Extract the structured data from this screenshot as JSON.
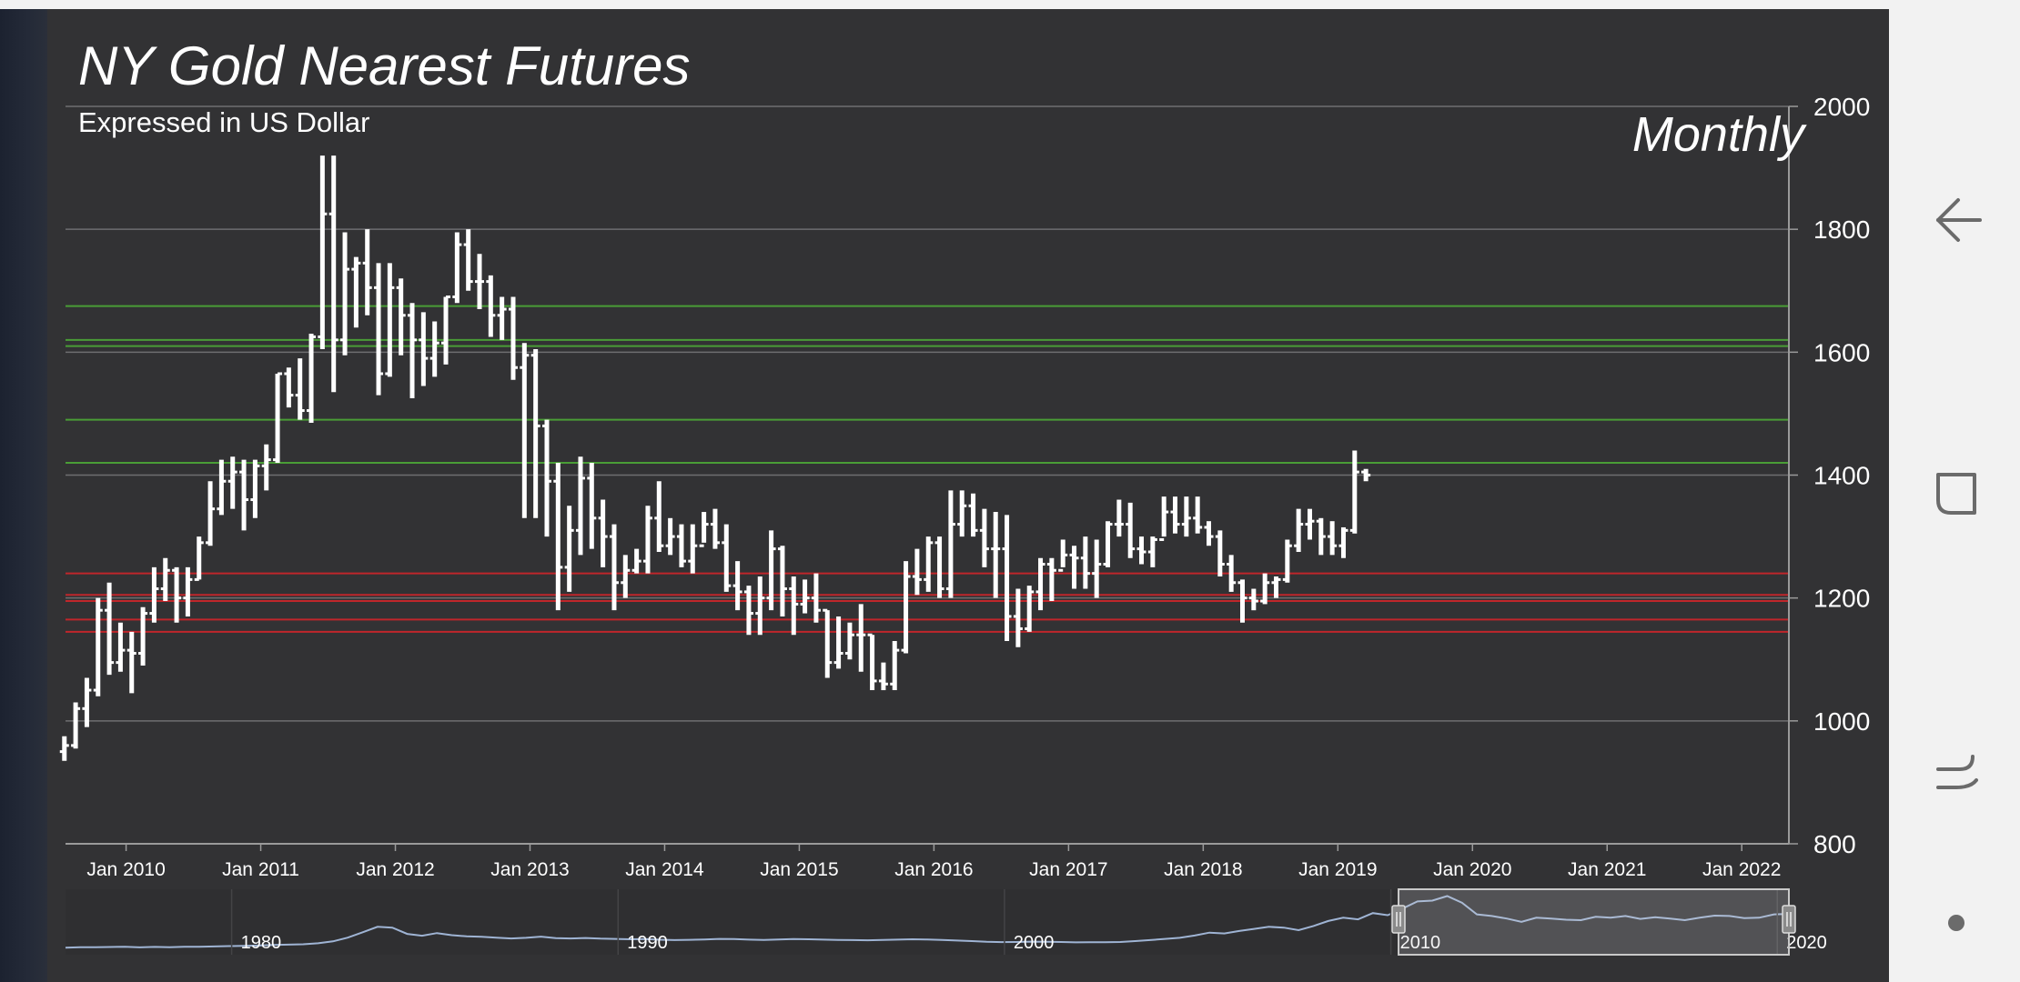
{
  "chart_data": {
    "type": "ohlc",
    "title": "NY Gold Nearest Futures",
    "subtitle": "Expressed in US Dollar",
    "period_label": "Monthly",
    "ylim": [
      800,
      2000
    ],
    "y_ticks": [
      "800",
      "1000",
      "1200",
      "1400",
      "1600",
      "1800",
      "2000"
    ],
    "x_ticks": [
      "Jan 2010",
      "Jan 2011",
      "Jan 2012",
      "Jan 2013",
      "Jan 2014",
      "Jan 2015",
      "Jan 2016",
      "Jan 2017",
      "Jan 2018",
      "Jan 2019",
      "Jan 2020",
      "Jan 2021",
      "Jan 2022"
    ],
    "x_range_years": [
      2009.55,
      2022.35
    ],
    "start": "2009-07",
    "green_levels": [
      1675,
      1620,
      1610,
      1490,
      1420
    ],
    "red_levels": [
      1240,
      1205,
      1195,
      1165,
      1145
    ],
    "grid": true,
    "colors": {
      "background": "#323234",
      "bars": "#ffffff",
      "grid": "#6e6e70",
      "green_lines": "#4a9d36",
      "red_lines": "#c0262b",
      "navigator_line": "#9fb4d4"
    },
    "bars": [
      [
        950,
        975,
        935,
        960
      ],
      [
        960,
        1030,
        955,
        1020
      ],
      [
        1020,
        1070,
        990,
        1050
      ],
      [
        1050,
        1200,
        1040,
        1180
      ],
      [
        1180,
        1225,
        1075,
        1095
      ],
      [
        1095,
        1160,
        1080,
        1115
      ],
      [
        1115,
        1145,
        1045,
        1110
      ],
      [
        1110,
        1185,
        1090,
        1175
      ],
      [
        1175,
        1250,
        1160,
        1215
      ],
      [
        1215,
        1265,
        1195,
        1245
      ],
      [
        1245,
        1250,
        1160,
        1200
      ],
      [
        1200,
        1250,
        1170,
        1230
      ],
      [
        1230,
        1300,
        1230,
        1290
      ],
      [
        1290,
        1390,
        1285,
        1345
      ],
      [
        1345,
        1425,
        1335,
        1390
      ],
      [
        1390,
        1430,
        1345,
        1405
      ],
      [
        1405,
        1425,
        1310,
        1360
      ],
      [
        1360,
        1425,
        1330,
        1415
      ],
      [
        1415,
        1450,
        1375,
        1425
      ],
      [
        1425,
        1565,
        1420,
        1565
      ],
      [
        1565,
        1575,
        1510,
        1530
      ],
      [
        1530,
        1590,
        1490,
        1505
      ],
      [
        1505,
        1630,
        1485,
        1625
      ],
      [
        1625,
        1920,
        1605,
        1825
      ],
      [
        1825,
        1920,
        1535,
        1620
      ],
      [
        1620,
        1795,
        1595,
        1735
      ],
      [
        1735,
        1755,
        1640,
        1745
      ],
      [
        1745,
        1800,
        1660,
        1705
      ],
      [
        1705,
        1745,
        1530,
        1565
      ],
      [
        1565,
        1745,
        1560,
        1705
      ],
      [
        1705,
        1720,
        1595,
        1660
      ],
      [
        1660,
        1680,
        1525,
        1620
      ],
      [
        1620,
        1665,
        1545,
        1590
      ],
      [
        1590,
        1650,
        1560,
        1615
      ],
      [
        1615,
        1690,
        1580,
        1690
      ],
      [
        1690,
        1795,
        1680,
        1775
      ],
      [
        1775,
        1800,
        1700,
        1715
      ],
      [
        1715,
        1760,
        1670,
        1715
      ],
      [
        1715,
        1725,
        1625,
        1660
      ],
      [
        1660,
        1690,
        1620,
        1670
      ],
      [
        1670,
        1690,
        1555,
        1575
      ],
      [
        1575,
        1615,
        1330,
        1595
      ],
      [
        1595,
        1605,
        1330,
        1480
      ],
      [
        1480,
        1490,
        1300,
        1390
      ],
      [
        1390,
        1420,
        1180,
        1250
      ],
      [
        1250,
        1350,
        1210,
        1310
      ],
      [
        1310,
        1430,
        1270,
        1395
      ],
      [
        1395,
        1420,
        1280,
        1330
      ],
      [
        1330,
        1360,
        1250,
        1300
      ],
      [
        1300,
        1320,
        1180,
        1225
      ],
      [
        1225,
        1270,
        1200,
        1245
      ],
      [
        1245,
        1280,
        1240,
        1260
      ],
      [
        1260,
        1350,
        1240,
        1330
      ],
      [
        1330,
        1390,
        1275,
        1285
      ],
      [
        1285,
        1330,
        1270,
        1300
      ],
      [
        1300,
        1320,
        1250,
        1260
      ],
      [
        1260,
        1320,
        1240,
        1285
      ],
      [
        1285,
        1340,
        1290,
        1320
      ],
      [
        1320,
        1345,
        1280,
        1290
      ],
      [
        1290,
        1320,
        1210,
        1220
      ],
      [
        1220,
        1260,
        1180,
        1210
      ],
      [
        1210,
        1220,
        1140,
        1175
      ],
      [
        1175,
        1235,
        1140,
        1200
      ],
      [
        1200,
        1310,
        1180,
        1280
      ],
      [
        1280,
        1285,
        1170,
        1215
      ],
      [
        1215,
        1235,
        1140,
        1190
      ],
      [
        1190,
        1230,
        1175,
        1200
      ],
      [
        1200,
        1240,
        1160,
        1180
      ],
      [
        1180,
        1180,
        1070,
        1095
      ],
      [
        1095,
        1170,
        1085,
        1110
      ],
      [
        1110,
        1160,
        1100,
        1140
      ],
      [
        1140,
        1190,
        1080,
        1140
      ],
      [
        1140,
        1140,
        1050,
        1065
      ],
      [
        1065,
        1095,
        1050,
        1060
      ],
      [
        1060,
        1130,
        1050,
        1115
      ],
      [
        1115,
        1260,
        1110,
        1235
      ],
      [
        1235,
        1280,
        1205,
        1230
      ],
      [
        1230,
        1300,
        1210,
        1290
      ],
      [
        1290,
        1300,
        1200,
        1215
      ],
      [
        1215,
        1375,
        1200,
        1320
      ],
      [
        1320,
        1375,
        1300,
        1350
      ],
      [
        1350,
        1370,
        1300,
        1310
      ],
      [
        1310,
        1345,
        1250,
        1280
      ],
      [
        1280,
        1340,
        1200,
        1280
      ],
      [
        1280,
        1335,
        1130,
        1170
      ],
      [
        1170,
        1215,
        1120,
        1150
      ],
      [
        1150,
        1220,
        1145,
        1210
      ],
      [
        1210,
        1265,
        1180,
        1255
      ],
      [
        1255,
        1265,
        1195,
        1245
      ],
      [
        1245,
        1295,
        1250,
        1270
      ],
      [
        1270,
        1285,
        1215,
        1265
      ],
      [
        1265,
        1300,
        1215,
        1240
      ],
      [
        1240,
        1295,
        1200,
        1255
      ],
      [
        1255,
        1325,
        1250,
        1320
      ],
      [
        1320,
        1360,
        1300,
        1320
      ],
      [
        1320,
        1355,
        1265,
        1280
      ],
      [
        1280,
        1300,
        1255,
        1275
      ],
      [
        1275,
        1300,
        1250,
        1295
      ],
      [
        1295,
        1365,
        1300,
        1340
      ],
      [
        1340,
        1365,
        1305,
        1320
      ],
      [
        1320,
        1365,
        1300,
        1330
      ],
      [
        1330,
        1365,
        1305,
        1315
      ],
      [
        1315,
        1325,
        1285,
        1300
      ],
      [
        1300,
        1310,
        1235,
        1255
      ],
      [
        1255,
        1270,
        1210,
        1225
      ],
      [
        1225,
        1230,
        1160,
        1200
      ],
      [
        1200,
        1215,
        1180,
        1195
      ],
      [
        1195,
        1240,
        1190,
        1225
      ],
      [
        1225,
        1235,
        1200,
        1230
      ],
      [
        1230,
        1295,
        1225,
        1285
      ],
      [
        1285,
        1345,
        1275,
        1320
      ],
      [
        1320,
        1345,
        1295,
        1325
      ],
      [
        1325,
        1330,
        1270,
        1300
      ],
      [
        1300,
        1325,
        1270,
        1285
      ],
      [
        1285,
        1315,
        1265,
        1310
      ],
      [
        1310,
        1440,
        1305,
        1405
      ],
      [
        1405,
        1410,
        1390,
        1400
      ]
    ],
    "navigator": {
      "tick_labels": [
        "1980",
        "1990",
        "2000",
        "2010",
        "2020"
      ],
      "series": [
        2.0,
        2.5,
        2.4,
        2.7,
        2.9,
        2.3,
        2.8,
        2.5,
        3.0,
        3.1,
        3.4,
        3.8,
        4.0,
        4.5,
        5.1,
        5.6,
        6.0,
        7.2,
        9.5,
        14.0,
        20.5,
        27.0,
        26.0,
        18.5,
        16.3,
        19.5,
        17.0,
        15.5,
        15.0,
        14.0,
        13.0,
        13.8,
        15.2,
        13.4,
        13.0,
        13.6,
        12.8,
        12.5,
        12.0,
        12.3,
        11.5,
        11.0,
        11.4,
        11.8,
        12.5,
        12.2,
        11.6,
        11.3,
        11.8,
        12.2,
        12.0,
        11.6,
        11.3,
        11.0,
        10.8,
        11.2,
        11.6,
        12.0,
        11.7,
        11.2,
        10.5,
        9.8,
        9.0,
        8.6,
        8.8,
        9.2,
        9.0,
        8.7,
        8.3,
        8.5,
        8.4,
        8.7,
        9.8,
        11.0,
        12.5,
        13.8,
        16.5,
        20.0,
        19.0,
        22.0,
        24.5,
        27.0,
        26.0,
        23.0,
        28.0,
        34.0,
        38.0,
        36.0,
        43.5,
        41.0,
        49.0,
        57.5,
        58.5,
        64.0,
        56.0,
        42.0,
        40.0,
        37.0,
        33.0,
        38.0,
        37.0,
        35.5,
        35.0,
        39.0,
        38.0,
        40.0,
        36.5,
        38.5,
        37.0,
        35.0,
        38.0,
        40.5,
        40.0,
        37.5,
        38.0,
        42.0,
        42.5
      ]
    }
  },
  "navigation": {
    "back": "back-icon",
    "recents": "recents-icon",
    "swap": "swap-icon",
    "dot": "dot-icon"
  }
}
